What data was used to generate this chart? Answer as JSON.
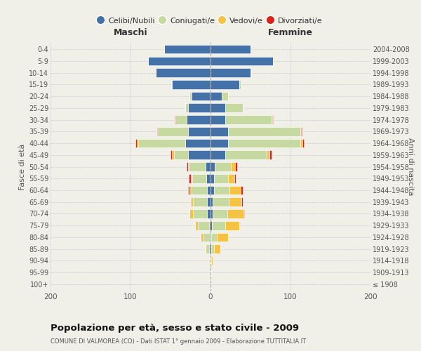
{
  "age_groups": [
    "100+",
    "95-99",
    "90-94",
    "85-89",
    "80-84",
    "75-79",
    "70-74",
    "65-69",
    "60-64",
    "55-59",
    "50-54",
    "45-49",
    "40-44",
    "35-39",
    "30-34",
    "25-29",
    "20-24",
    "15-19",
    "10-14",
    "5-9",
    "0-4"
  ],
  "birth_years": [
    "≤ 1908",
    "1909-1913",
    "1914-1918",
    "1919-1923",
    "1924-1928",
    "1929-1933",
    "1934-1938",
    "1939-1943",
    "1944-1948",
    "1949-1953",
    "1954-1958",
    "1959-1963",
    "1964-1968",
    "1969-1973",
    "1974-1978",
    "1979-1983",
    "1984-1988",
    "1989-1993",
    "1994-1998",
    "1999-2003",
    "2004-2008"
  ],
  "maschi": {
    "celibi": [
      0,
      0,
      0,
      2,
      1,
      2,
      4,
      4,
      4,
      5,
      6,
      28,
      32,
      28,
      30,
      28,
      24,
      48,
      68,
      78,
      58
    ],
    "coniugati": [
      0,
      0,
      1,
      4,
      8,
      14,
      18,
      18,
      20,
      18,
      20,
      18,
      58,
      38,
      14,
      4,
      2,
      1,
      0,
      0,
      0
    ],
    "vedovi": [
      0,
      0,
      0,
      1,
      3,
      3,
      4,
      2,
      2,
      2,
      2,
      2,
      2,
      0,
      0,
      0,
      0,
      0,
      0,
      0,
      0
    ],
    "divorziati": [
      0,
      0,
      0,
      0,
      0,
      0,
      0,
      1,
      2,
      2,
      2,
      2,
      2,
      1,
      1,
      0,
      0,
      0,
      0,
      0,
      0
    ]
  },
  "femmine": {
    "nubili": [
      0,
      0,
      0,
      1,
      1,
      2,
      3,
      3,
      4,
      4,
      5,
      18,
      22,
      22,
      18,
      18,
      14,
      36,
      50,
      78,
      50
    ],
    "coniugate": [
      0,
      0,
      1,
      3,
      7,
      16,
      18,
      20,
      20,
      18,
      20,
      52,
      90,
      90,
      58,
      22,
      8,
      2,
      1,
      0,
      0
    ],
    "vedove": [
      0,
      1,
      2,
      8,
      14,
      18,
      20,
      16,
      14,
      8,
      6,
      4,
      3,
      2,
      1,
      0,
      0,
      0,
      0,
      0,
      0
    ],
    "divorziate": [
      0,
      0,
      0,
      0,
      0,
      0,
      1,
      1,
      2,
      2,
      2,
      2,
      2,
      1,
      1,
      0,
      0,
      0,
      0,
      0,
      0
    ]
  },
  "colors": {
    "celibi_nubili": "#4472a8",
    "coniugati": "#c5d9a0",
    "vedovi": "#f5c242",
    "divorziati": "#d9241c"
  },
  "legend_labels": [
    "Celibi/Nubili",
    "Coniugati/e",
    "Vedovi/e",
    "Divorziati/e"
  ],
  "title": "Popolazione per età, sesso e stato civile - 2009",
  "subtitle": "COMUNE DI VALMOREA (CO) - Dati ISTAT 1° gennaio 2009 - Elaborazione TUTTITALIA.IT",
  "label_maschi": "Maschi",
  "label_femmine": "Femmine",
  "ylabel_left": "Fasce di età",
  "ylabel_right": "Anni di nascita",
  "xlim": 200,
  "bg_color": "#f0f0e8",
  "bar_edge_color": "white"
}
